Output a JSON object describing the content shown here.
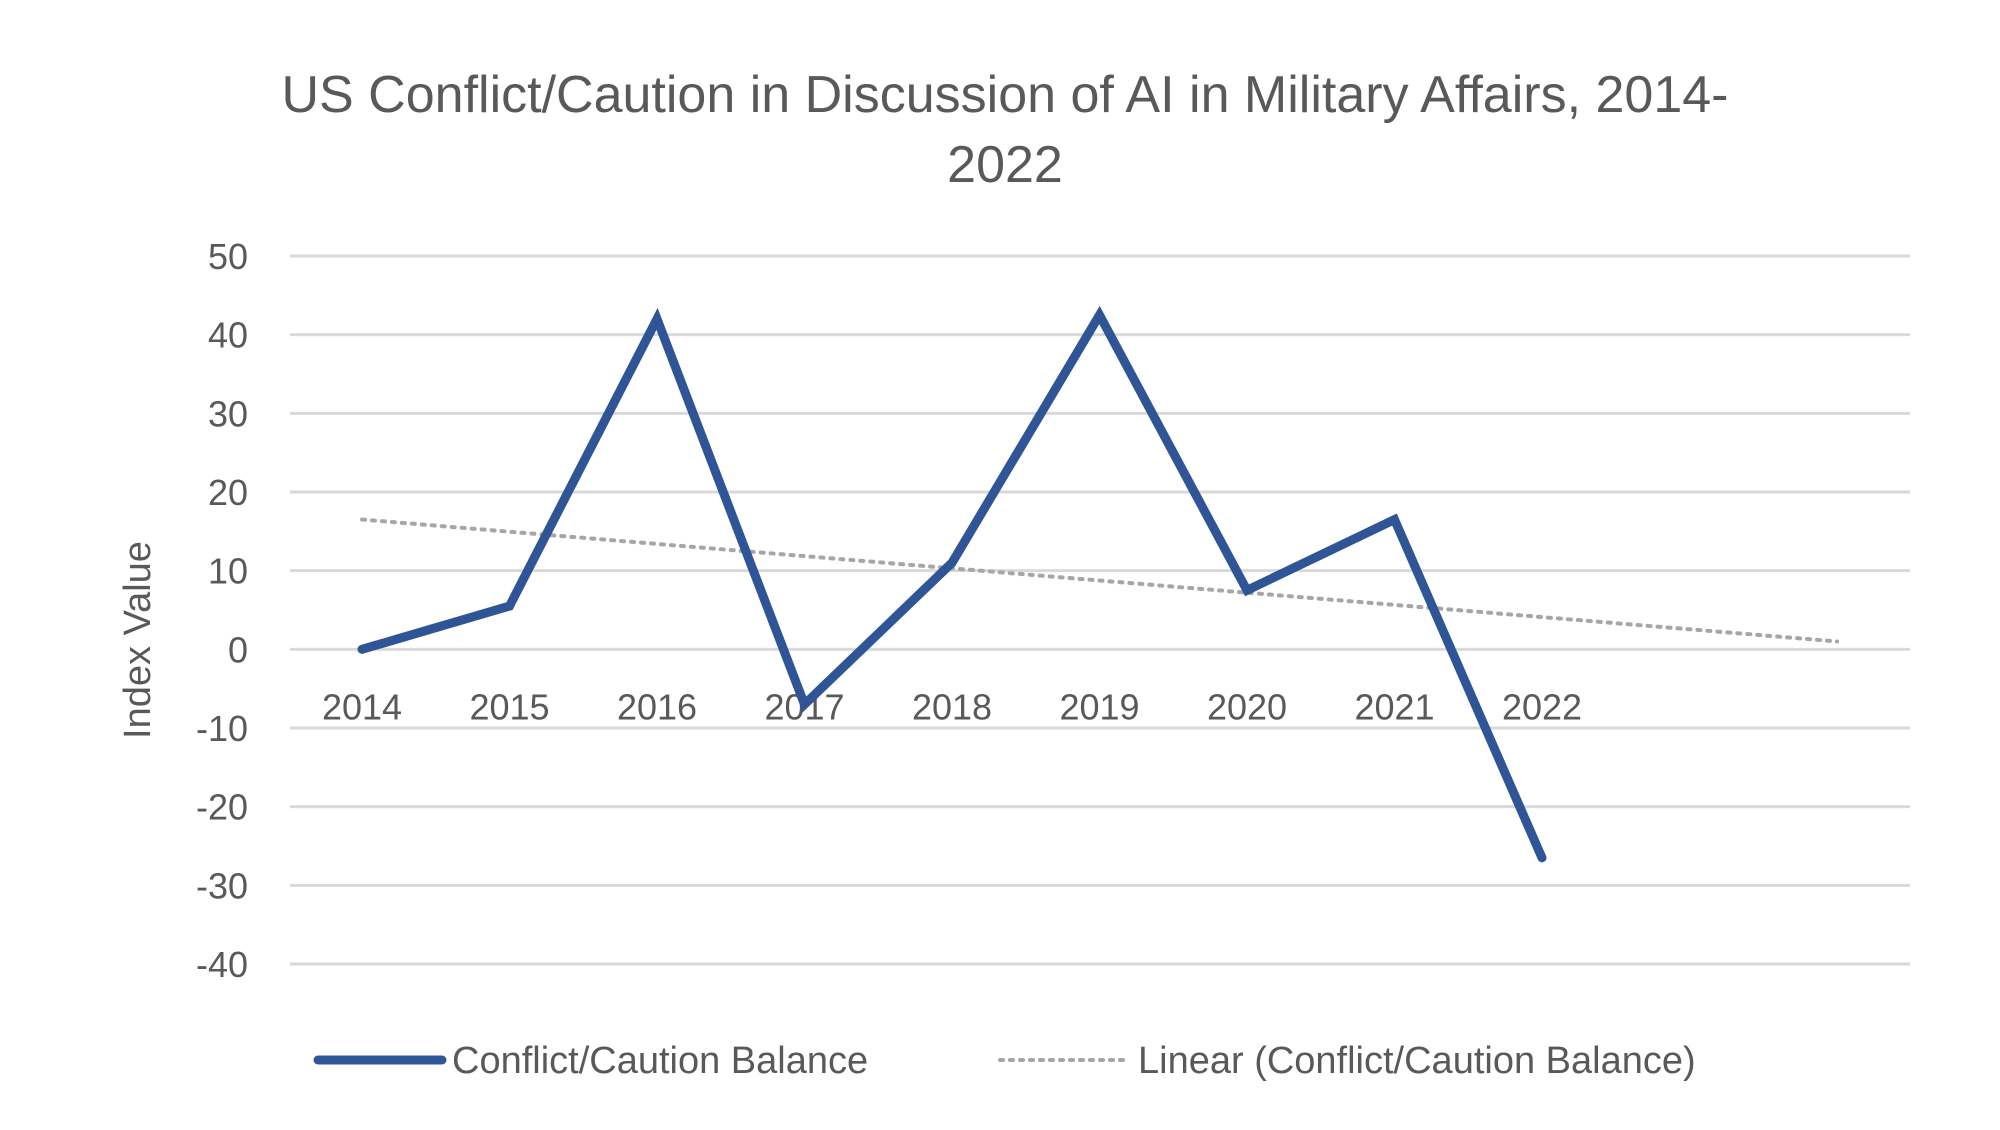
{
  "chart_data": {
    "type": "line",
    "title": "US Conflict/Caution in Discussion of AI in Military Affairs, 2014-2022",
    "xlabel": "",
    "ylabel": "Index Value",
    "categories": [
      "2014",
      "2015",
      "2016",
      "2017",
      "2018",
      "2019",
      "2020",
      "2021",
      "2022"
    ],
    "series": [
      {
        "name": "Conflict/Caution Balance",
        "values": [
          0,
          5.5,
          42,
          -7,
          11,
          42.5,
          7.5,
          16.5,
          -26.5
        ],
        "color": "#2F5597"
      }
    ],
    "trendline": {
      "name": "Linear (Conflict/Caution Balance)",
      "type": "linear",
      "start": 16.5,
      "end": 1,
      "forward_periods": 2,
      "color": "#A6A6A6"
    },
    "ylim": [
      -40,
      50
    ],
    "ytick_step": 10,
    "grid": true,
    "legend_position": "bottom"
  }
}
